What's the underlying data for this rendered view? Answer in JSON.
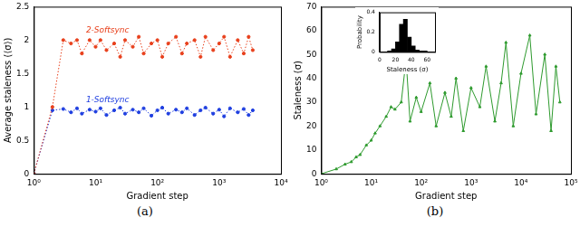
{
  "chart_data": [
    {
      "type": "line",
      "caption": "(a)",
      "xlabel": "Gradient step",
      "ylabel": "Average staleness (⟨σ⟩)",
      "log": "x",
      "grid": false,
      "xlim": [
        1,
        10000
      ],
      "xticks": [
        {
          "value": 1,
          "label": "10⁰"
        },
        {
          "value": 10,
          "label": "10¹"
        },
        {
          "value": 100,
          "label": "10²"
        },
        {
          "value": 1000,
          "label": "10³"
        },
        {
          "value": 10000,
          "label": "10⁴"
        }
      ],
      "ylim": [
        0,
        2.5
      ],
      "yticks": [
        0,
        0.5,
        1,
        1.5,
        2,
        2.5
      ],
      "x": [
        1,
        2,
        3,
        4,
        5,
        6,
        8,
        10,
        12,
        15,
        20,
        25,
        30,
        40,
        50,
        60,
        80,
        100,
        120,
        150,
        200,
        250,
        300,
        400,
        500,
        600,
        800,
        1000,
        1200,
        1500,
        2000,
        2500,
        3000,
        3500
      ],
      "series": [
        {
          "name": "2-Softsync",
          "color": "#e8401c",
          "marker": "circle",
          "line_style": "dotted",
          "values": [
            0,
            1.0,
            2.0,
            1.95,
            2.0,
            1.8,
            2.0,
            1.9,
            2.0,
            1.85,
            1.95,
            1.75,
            2.0,
            1.9,
            2.05,
            1.8,
            1.95,
            2.0,
            1.75,
            1.95,
            2.05,
            1.8,
            1.95,
            2.0,
            1.75,
            2.05,
            1.85,
            1.95,
            2.05,
            1.75,
            2.0,
            1.8,
            2.05,
            1.85
          ]
        },
        {
          "name": "1-Softsync",
          "color": "#1f3fe0",
          "marker": "circle",
          "line_style": "dotted",
          "values": [
            0,
            0.95,
            0.97,
            0.92,
            0.98,
            0.9,
            0.96,
            0.93,
            0.98,
            0.88,
            0.95,
            0.99,
            0.9,
            0.96,
            0.92,
            0.98,
            0.87,
            0.95,
            0.99,
            0.9,
            0.96,
            0.92,
            0.98,
            0.88,
            0.95,
            0.99,
            0.9,
            0.96,
            0.86,
            0.98,
            0.92,
            0.97,
            0.88,
            0.95
          ]
        }
      ]
    },
    {
      "type": "line",
      "caption": "(b)",
      "xlabel": "Gradient step",
      "ylabel": "Staleness (σ)",
      "log": "x",
      "grid": false,
      "xlim": [
        1,
        100000
      ],
      "xticks": [
        {
          "value": 1,
          "label": "10⁰"
        },
        {
          "value": 10,
          "label": "10¹"
        },
        {
          "value": 100,
          "label": "10²"
        },
        {
          "value": 1000,
          "label": "10³"
        },
        {
          "value": 10000,
          "label": "10⁴"
        },
        {
          "value": 100000,
          "label": "10⁵"
        }
      ],
      "ylim": [
        0,
        70
      ],
      "yticks": [
        0,
        10,
        20,
        30,
        40,
        50,
        60,
        70
      ],
      "x": [
        1,
        2,
        3,
        4,
        5,
        6,
        8,
        10,
        12,
        15,
        20,
        25,
        30,
        40,
        50,
        60,
        80,
        100,
        150,
        200,
        300,
        400,
        500,
        700,
        1000,
        1500,
        2000,
        3000,
        4000,
        5000,
        7000,
        10000,
        15000,
        20000,
        30000,
        40000,
        50000,
        60000
      ],
      "color": "#2e9a2e",
      "marker": "triangle",
      "line_style": "solid",
      "values": [
        0,
        2,
        4,
        5,
        7,
        8,
        12,
        14,
        17,
        20,
        24,
        28,
        27,
        30,
        48,
        22,
        32,
        26,
        38,
        20,
        34,
        24,
        40,
        18,
        36,
        28,
        45,
        22,
        38,
        55,
        20,
        42,
        58,
        25,
        50,
        18,
        45,
        30
      ],
      "inset": {
        "type": "histogram",
        "xlabel": "Staleness (σ)",
        "ylabel": "Probability",
        "color": "#000000",
        "bins": [
          0,
          5,
          10,
          15,
          20,
          25,
          30,
          35,
          40,
          45,
          50,
          55,
          60,
          65,
          70
        ],
        "counts": [
          0,
          0,
          0.01,
          0.03,
          0.1,
          0.28,
          0.33,
          0.15,
          0.06,
          0.02,
          0.01,
          0.01,
          0,
          0
        ],
        "xlim": [
          0,
          70
        ],
        "xticks": [
          0,
          20,
          40,
          60
        ],
        "ylim": [
          0,
          0.4
        ],
        "yticks": [
          0,
          0.2,
          0.4
        ]
      }
    }
  ]
}
